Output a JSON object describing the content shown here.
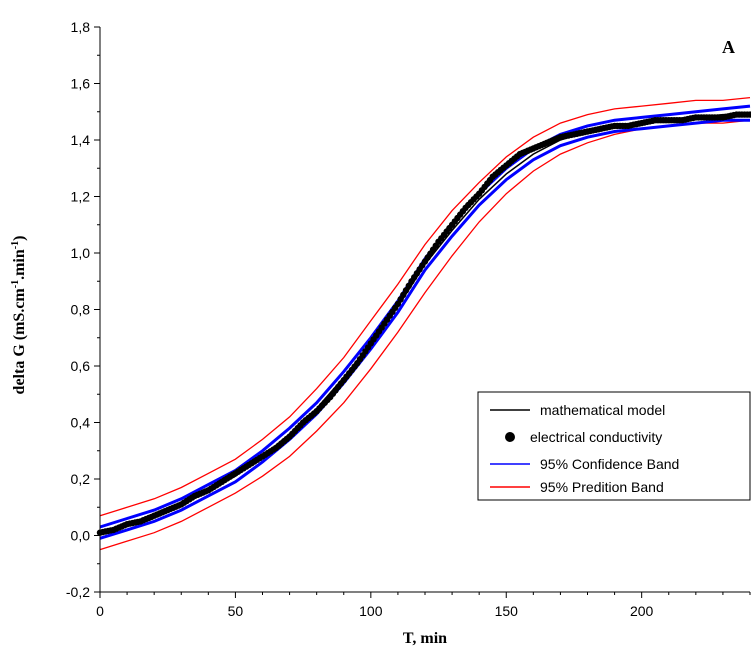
{
  "chart_data": {
    "type": "line",
    "panel_label": "A",
    "xlabel": "T, min",
    "ylabel_main": "delta G (mS.cm",
    "ylabel_sup1": "-1",
    "ylabel_mid": ".min",
    "ylabel_sup2": "-1",
    "ylabel_end": ")",
    "xlim": [
      0,
      240
    ],
    "ylim": [
      -0.2,
      1.8
    ],
    "x_ticks": [
      0,
      50,
      100,
      150,
      200
    ],
    "x_tick_labels": [
      "0",
      "50",
      "100",
      "150",
      "200"
    ],
    "y_ticks": [
      -0.2,
      0.0,
      0.2,
      0.4,
      0.6,
      0.8,
      1.0,
      1.2,
      1.4,
      1.6,
      1.8
    ],
    "y_tick_labels": [
      "-0,2",
      "0,0",
      "0,2",
      "0,4",
      "0,6",
      "0,8",
      "1,0",
      "1,2",
      "1,4",
      "1,6",
      "1,8"
    ],
    "grid": false,
    "legend_position": "bottom-right",
    "legend": [
      {
        "label": "mathematical model",
        "style": "line",
        "color": "#000000"
      },
      {
        "label": "electrical conductivity",
        "style": "marker",
        "color": "#000000"
      },
      {
        "label": "95% Confidence Band",
        "style": "line",
        "color": "#0000ff"
      },
      {
        "label": "95% Predition Band",
        "style": "line",
        "color": "#ff0000"
      }
    ],
    "series": [
      {
        "name": "electrical conductivity",
        "kind": "scatter",
        "color": "#000000",
        "x": [
          0,
          5,
          10,
          15,
          20,
          25,
          30,
          35,
          40,
          45,
          50,
          55,
          60,
          65,
          70,
          75,
          80,
          85,
          90,
          95,
          100,
          105,
          110,
          115,
          120,
          125,
          130,
          135,
          140,
          145,
          150,
          155,
          160,
          165,
          170,
          175,
          180,
          185,
          190,
          195,
          200,
          205,
          210,
          215,
          220,
          225,
          230,
          235,
          240
        ],
        "y": [
          0.01,
          0.02,
          0.04,
          0.05,
          0.07,
          0.09,
          0.11,
          0.14,
          0.16,
          0.19,
          0.22,
          0.25,
          0.28,
          0.31,
          0.35,
          0.4,
          0.44,
          0.49,
          0.55,
          0.61,
          0.68,
          0.75,
          0.82,
          0.9,
          0.97,
          1.04,
          1.1,
          1.16,
          1.21,
          1.27,
          1.31,
          1.35,
          1.37,
          1.39,
          1.41,
          1.42,
          1.43,
          1.44,
          1.45,
          1.45,
          1.46,
          1.47,
          1.47,
          1.47,
          1.48,
          1.48,
          1.48,
          1.49,
          1.49
        ]
      },
      {
        "name": "mathematical model",
        "kind": "line",
        "color": "#000000",
        "x": [
          0,
          10,
          20,
          30,
          40,
          50,
          60,
          70,
          80,
          90,
          100,
          110,
          120,
          130,
          140,
          150,
          160,
          170,
          180,
          190,
          200,
          210,
          220,
          230,
          240
        ],
        "y": [
          0.01,
          0.04,
          0.07,
          0.11,
          0.16,
          0.21,
          0.28,
          0.36,
          0.45,
          0.56,
          0.68,
          0.81,
          0.96,
          1.08,
          1.19,
          1.28,
          1.35,
          1.4,
          1.43,
          1.45,
          1.46,
          1.47,
          1.48,
          1.49,
          1.49
        ]
      },
      {
        "name": "95% Confidence Band",
        "kind": "band",
        "color": "#0000ff",
        "x": [
          0,
          10,
          20,
          30,
          40,
          50,
          60,
          70,
          80,
          90,
          100,
          110,
          120,
          130,
          140,
          150,
          160,
          170,
          180,
          190,
          200,
          210,
          220,
          230,
          240
        ],
        "upper": [
          0.03,
          0.06,
          0.09,
          0.13,
          0.18,
          0.23,
          0.3,
          0.38,
          0.47,
          0.58,
          0.7,
          0.83,
          0.98,
          1.1,
          1.21,
          1.3,
          1.37,
          1.42,
          1.45,
          1.47,
          1.48,
          1.49,
          1.5,
          1.51,
          1.52
        ],
        "lower": [
          -0.01,
          0.02,
          0.05,
          0.09,
          0.14,
          0.19,
          0.26,
          0.34,
          0.43,
          0.54,
          0.66,
          0.79,
          0.94,
          1.06,
          1.17,
          1.26,
          1.33,
          1.38,
          1.41,
          1.43,
          1.44,
          1.45,
          1.46,
          1.47,
          1.47
        ]
      },
      {
        "name": "95% Predition Band",
        "kind": "band",
        "color": "#ff0000",
        "x": [
          0,
          10,
          20,
          30,
          40,
          50,
          60,
          70,
          80,
          90,
          100,
          110,
          120,
          130,
          140,
          150,
          160,
          170,
          180,
          190,
          200,
          210,
          220,
          230,
          240
        ],
        "upper": [
          0.07,
          0.1,
          0.13,
          0.17,
          0.22,
          0.27,
          0.34,
          0.42,
          0.52,
          0.63,
          0.76,
          0.89,
          1.03,
          1.15,
          1.25,
          1.34,
          1.41,
          1.46,
          1.49,
          1.51,
          1.52,
          1.53,
          1.54,
          1.54,
          1.55
        ],
        "lower": [
          -0.05,
          -0.02,
          0.01,
          0.05,
          0.1,
          0.15,
          0.21,
          0.28,
          0.37,
          0.47,
          0.59,
          0.72,
          0.86,
          0.99,
          1.11,
          1.21,
          1.29,
          1.35,
          1.39,
          1.42,
          1.44,
          1.45,
          1.46,
          1.46,
          1.47
        ]
      }
    ]
  }
}
